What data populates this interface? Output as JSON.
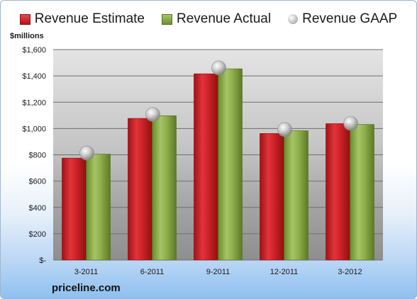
{
  "chart_data": {
    "type": "bar",
    "ylabel": "$millions",
    "categories": [
      "3-2011",
      "6-2011",
      "9-2011",
      "12-2011",
      "3-2012"
    ],
    "series": [
      {
        "name": "Revenue Estimate",
        "values": [
          775,
          1077,
          1416,
          962,
          1037
        ],
        "color": "#c4191f"
      },
      {
        "name": "Revenue Actual",
        "values": [
          805,
          1097,
          1454,
          983,
          1031
        ],
        "color": "#88a542"
      },
      {
        "name": "Revenue GAAP",
        "values": [
          813,
          1107,
          1461,
          992,
          1039
        ],
        "color": "#b8b8b8"
      }
    ],
    "ylim": [
      0,
      1600
    ],
    "yticks": [
      0,
      200,
      400,
      600,
      800,
      1000,
      1200,
      1400,
      1600
    ],
    "ytick_labels": [
      "$-",
      "$200",
      "$400",
      "$600",
      "$800",
      "$1,000",
      "$1,200",
      "$1,400",
      "$1,600"
    ],
    "grid": true,
    "legend_position": "top"
  },
  "source_label": "priceline.com"
}
